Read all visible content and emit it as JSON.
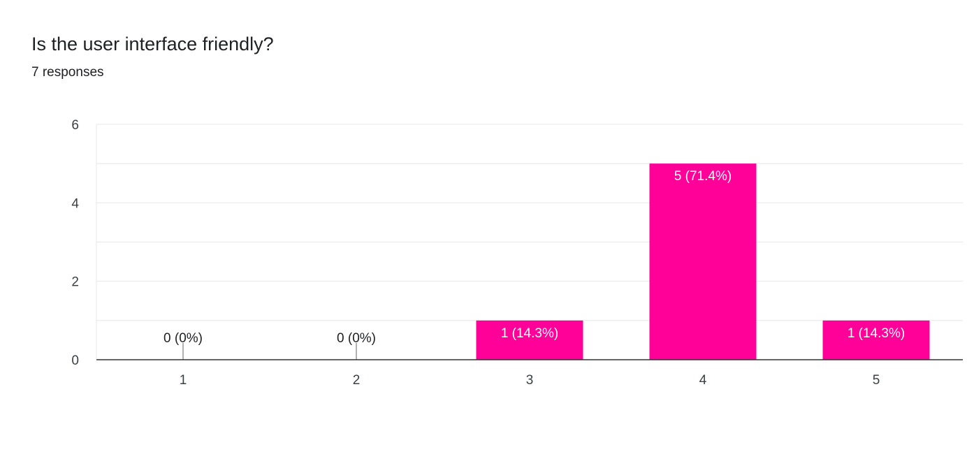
{
  "question": {
    "title": "Is the user interface friendly?",
    "responses": "7 responses"
  },
  "colors": {
    "bar": "#ff0099",
    "grid": "#e8e8e8",
    "axis": "#333333",
    "text": "#202124",
    "label_inside": "#ffffff",
    "label_outside": "#202124"
  },
  "chart_data": {
    "type": "bar",
    "title": "Is the user interface friendly?",
    "categories": [
      "1",
      "2",
      "3",
      "4",
      "5"
    ],
    "values": [
      0,
      0,
      1,
      5,
      1
    ],
    "data_labels": [
      "0 (0%)",
      "0 (0%)",
      "1 (14.3%)",
      "5 (71.4%)",
      "1 (14.3%)"
    ],
    "xlabel": "",
    "ylabel": "",
    "ylim": [
      0,
      6
    ],
    "yticks": [
      0,
      2,
      4,
      6
    ],
    "grid": true,
    "legend": "none"
  }
}
